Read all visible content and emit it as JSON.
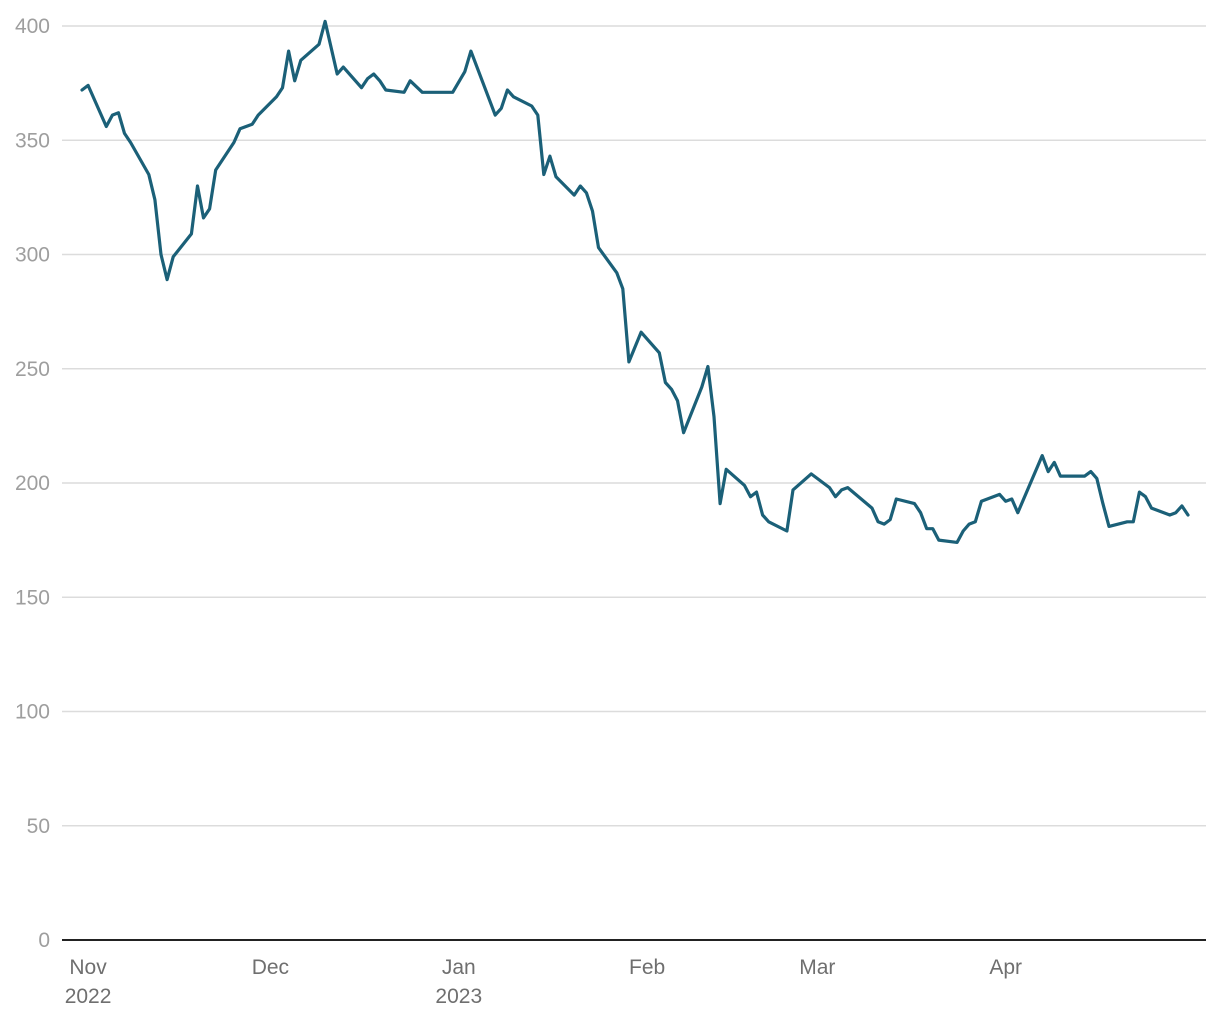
{
  "chart_data": {
    "type": "line",
    "title": "",
    "xlabel": "",
    "ylabel": "",
    "ylim": [
      0,
      400
    ],
    "grid": true,
    "legend": "none",
    "y_ticks": [
      0,
      50,
      100,
      150,
      200,
      250,
      300,
      350,
      400
    ],
    "x_ticks": [
      {
        "date": "2022-11-01",
        "label": "Nov",
        "sublabel": "2022"
      },
      {
        "date": "2022-12-01",
        "label": "Dec",
        "sublabel": ""
      },
      {
        "date": "2023-01-01",
        "label": "Jan",
        "sublabel": "2023"
      },
      {
        "date": "2023-02-01",
        "label": "Feb",
        "sublabel": ""
      },
      {
        "date": "2023-03-01",
        "label": "Mar",
        "sublabel": ""
      },
      {
        "date": "2023-04-01",
        "label": "Apr",
        "sublabel": ""
      }
    ],
    "colors": {
      "line": "#1b6078"
    },
    "series": [
      {
        "values": [
          [
            "2022-10-31",
            372
          ],
          [
            "2022-11-01",
            374
          ],
          [
            "2022-11-04",
            356
          ],
          [
            "2022-11-05",
            361
          ],
          [
            "2022-11-06",
            362
          ],
          [
            "2022-11-07",
            353
          ],
          [
            "2022-11-08",
            349
          ],
          [
            "2022-11-11",
            335
          ],
          [
            "2022-11-12",
            324
          ],
          [
            "2022-11-13",
            300
          ],
          [
            "2022-11-14",
            289
          ],
          [
            "2022-11-15",
            299
          ],
          [
            "2022-11-18",
            309
          ],
          [
            "2022-11-19",
            330
          ],
          [
            "2022-11-20",
            316
          ],
          [
            "2022-11-21",
            320
          ],
          [
            "2022-11-22",
            337
          ],
          [
            "2022-11-25",
            349
          ],
          [
            "2022-11-26",
            355
          ],
          [
            "2022-11-27",
            356
          ],
          [
            "2022-11-28",
            357
          ],
          [
            "2022-11-29",
            361
          ],
          [
            "2022-12-02",
            369
          ],
          [
            "2022-12-03",
            373
          ],
          [
            "2022-12-04",
            389
          ],
          [
            "2022-12-05",
            376
          ],
          [
            "2022-12-06",
            385
          ],
          [
            "2022-12-09",
            392
          ],
          [
            "2022-12-10",
            402
          ],
          [
            "2022-12-12",
            379
          ],
          [
            "2022-12-13",
            382
          ],
          [
            "2022-12-16",
            373
          ],
          [
            "2022-12-17",
            377
          ],
          [
            "2022-12-18",
            379
          ],
          [
            "2022-12-19",
            376
          ],
          [
            "2022-12-20",
            372
          ],
          [
            "2022-12-23",
            371
          ],
          [
            "2022-12-24",
            376
          ],
          [
            "2022-12-26",
            371
          ],
          [
            "2022-12-31",
            371
          ],
          [
            "2023-01-02",
            380
          ],
          [
            "2023-01-03",
            389
          ],
          [
            "2023-01-07",
            361
          ],
          [
            "2023-01-08",
            364
          ],
          [
            "2023-01-09",
            372
          ],
          [
            "2023-01-10",
            369
          ],
          [
            "2023-01-13",
            365
          ],
          [
            "2023-01-14",
            361
          ],
          [
            "2023-01-15",
            335
          ],
          [
            "2023-01-16",
            343
          ],
          [
            "2023-01-17",
            334
          ],
          [
            "2023-01-20",
            326
          ],
          [
            "2023-01-21",
            330
          ],
          [
            "2023-01-22",
            327
          ],
          [
            "2023-01-23",
            319
          ],
          [
            "2023-01-24",
            303
          ],
          [
            "2023-01-27",
            292
          ],
          [
            "2023-01-28",
            285
          ],
          [
            "2023-01-29",
            253
          ],
          [
            "2023-01-31",
            266
          ],
          [
            "2023-02-03",
            257
          ],
          [
            "2023-02-04",
            244
          ],
          [
            "2023-02-05",
            241
          ],
          [
            "2023-02-06",
            236
          ],
          [
            "2023-02-07",
            222
          ],
          [
            "2023-02-10",
            242
          ],
          [
            "2023-02-11",
            251
          ],
          [
            "2023-02-12",
            229
          ],
          [
            "2023-02-13",
            191
          ],
          [
            "2023-02-14",
            206
          ],
          [
            "2023-02-17",
            199
          ],
          [
            "2023-02-18",
            194
          ],
          [
            "2023-02-19",
            196
          ],
          [
            "2023-02-20",
            186
          ],
          [
            "2023-02-21",
            183
          ],
          [
            "2023-02-24",
            179
          ],
          [
            "2023-02-25",
            197
          ],
          [
            "2023-02-28",
            204
          ],
          [
            "2023-03-03",
            198
          ],
          [
            "2023-03-04",
            194
          ],
          [
            "2023-03-05",
            197
          ],
          [
            "2023-03-06",
            198
          ],
          [
            "2023-03-10",
            189
          ],
          [
            "2023-03-11",
            183
          ],
          [
            "2023-03-12",
            182
          ],
          [
            "2023-03-13",
            184
          ],
          [
            "2023-03-14",
            193
          ],
          [
            "2023-03-17",
            191
          ],
          [
            "2023-03-18",
            187
          ],
          [
            "2023-03-19",
            180
          ],
          [
            "2023-03-20",
            180
          ],
          [
            "2023-03-21",
            175
          ],
          [
            "2023-03-24",
            174
          ],
          [
            "2023-03-25",
            179
          ],
          [
            "2023-03-26",
            182
          ],
          [
            "2023-03-27",
            183
          ],
          [
            "2023-03-28",
            192
          ],
          [
            "2023-03-31",
            195
          ],
          [
            "2023-04-01",
            192
          ],
          [
            "2023-04-02",
            193
          ],
          [
            "2023-04-03",
            187
          ],
          [
            "2023-04-07",
            212
          ],
          [
            "2023-04-08",
            205
          ],
          [
            "2023-04-09",
            209
          ],
          [
            "2023-04-10",
            203
          ],
          [
            "2023-04-14",
            203
          ],
          [
            "2023-04-15",
            205
          ],
          [
            "2023-04-16",
            202
          ],
          [
            "2023-04-17",
            191
          ],
          [
            "2023-04-18",
            181
          ],
          [
            "2023-04-21",
            183
          ],
          [
            "2023-04-22",
            183
          ],
          [
            "2023-04-23",
            196
          ],
          [
            "2023-04-24",
            194
          ],
          [
            "2023-04-25",
            189
          ],
          [
            "2023-04-28",
            186
          ],
          [
            "2023-04-29",
            187
          ],
          [
            "2023-04-30",
            190
          ],
          [
            "2023-05-01",
            186
          ]
        ]
      }
    ]
  }
}
